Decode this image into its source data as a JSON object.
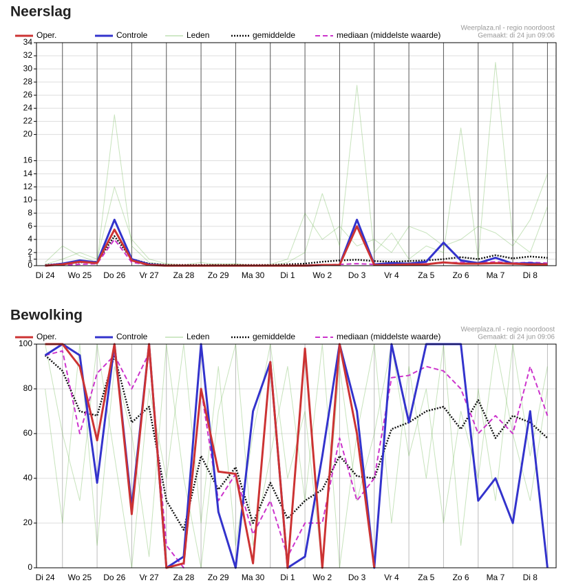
{
  "chart_data": [
    {
      "type": "line",
      "title": "Neerslag",
      "source": "Weerplaza.nl - regio noordoost",
      "created": "Gemaakt: di 24 jun 09:06",
      "categories": [
        "Di 24",
        null,
        "Wo 25",
        null,
        "Do 26",
        null,
        "Vr 27",
        null,
        "Za 28",
        null,
        "Zo 29",
        null,
        "Ma 30",
        null,
        "Di 1",
        null,
        "Wo 2",
        null,
        "Do 3",
        null,
        "Vr 4",
        null,
        "Za 5",
        null,
        "Zo 6",
        null,
        "Ma 7",
        null,
        "Di 8",
        null
      ],
      "ylim": [
        0,
        34
      ],
      "yticks": [
        0,
        1,
        2,
        4,
        6,
        8,
        10,
        12,
        14,
        16,
        20,
        22,
        24,
        26,
        28,
        30,
        32,
        34
      ],
      "grid": true,
      "series": [
        {
          "name": "Oper.",
          "color": "#cc3333",
          "style": "solid",
          "values": [
            0,
            0.2,
            0.6,
            0.4,
            5.5,
            0.8,
            0.1,
            0,
            0,
            0,
            0,
            0,
            0,
            0,
            0,
            0,
            0.1,
            0.1,
            6,
            0.1,
            0.1,
            0.2,
            0.2,
            0.5,
            0.3,
            0.3,
            0.4,
            0.3,
            0.2,
            0.2
          ]
        },
        {
          "name": "Controle",
          "color": "#3333cc",
          "style": "solid",
          "values": [
            0,
            0.3,
            0.8,
            0.5,
            7,
            1,
            0.2,
            0,
            0,
            0,
            0,
            0,
            0,
            0,
            0,
            0,
            0.1,
            0.1,
            7,
            0.2,
            0.4,
            0.3,
            0.6,
            3.5,
            0.8,
            0.4,
            1.2,
            0.3,
            0.4,
            0.2
          ]
        },
        {
          "name": "Leden",
          "color": "#5fb040",
          "style": "thin",
          "members": [
            [
              0.5,
              3,
              1.5,
              0.5,
              23,
              3,
              0.5,
              0.2,
              0,
              0,
              0.3,
              0.2,
              0.1,
              0,
              0.5,
              2,
              11,
              3,
              27.5,
              2,
              5,
              1,
              3,
              2,
              21,
              1,
              31,
              4,
              2,
              9
            ],
            [
              0.2,
              1,
              2,
              1,
              12,
              4,
              1,
              0.3,
              0.1,
              0.5,
              0.1,
              0.3,
              0,
              0.2,
              1,
              8,
              4,
              6,
              3,
              4,
              2,
              6,
              5,
              3,
              4,
              6,
              5,
              3,
              7,
              14
            ]
          ]
        },
        {
          "name": "gemiddelde",
          "color": "#111111",
          "style": "dotted",
          "values": [
            0.1,
            0.3,
            0.5,
            0.6,
            4.5,
            1,
            0.3,
            0.1,
            0.1,
            0.1,
            0.1,
            0.1,
            0.1,
            0.1,
            0.2,
            0.3,
            0.6,
            0.8,
            0.9,
            0.7,
            0.6,
            0.7,
            0.8,
            1,
            1.3,
            1,
            1.6,
            1.1,
            1.4,
            1.2
          ]
        },
        {
          "name": "mediaan (middelste waarde)",
          "color": "#cc33cc",
          "style": "dashed",
          "values": [
            0,
            0.1,
            0.2,
            0.3,
            4,
            0.5,
            0.1,
            0,
            0,
            0,
            0,
            0,
            0,
            0,
            0,
            0,
            0.1,
            0.2,
            0.3,
            0.2,
            0.2,
            0.2,
            0.3,
            0.4,
            0.5,
            0.4,
            0.6,
            0.4,
            0.5,
            0.4
          ]
        }
      ]
    },
    {
      "type": "line",
      "title": "Bewolking",
      "source": "Weerplaza.nl - regio noordoost",
      "created": "Gemaakt: di 24 jun 09:06",
      "categories": [
        "Di 24",
        null,
        "Wo 25",
        null,
        "Do 26",
        null,
        "Vr 27",
        null,
        "Za 28",
        null,
        "Zo 29",
        null,
        "Ma 30",
        null,
        "Di 1",
        null,
        "Wo 2",
        null,
        "Do 3",
        null,
        "Vr 4",
        null,
        "Za 5",
        null,
        "Zo 6",
        null,
        "Ma 7",
        null,
        "Di 8",
        null
      ],
      "ylim": [
        0,
        100
      ],
      "yticks": [
        0,
        20,
        40,
        60,
        80,
        100
      ],
      "grid": true,
      "series": [
        {
          "name": "Oper.",
          "color": "#cc3333",
          "style": "solid",
          "values": [
            100,
            100,
            90,
            57,
            100,
            24,
            100,
            0,
            2,
            80,
            43,
            42,
            2,
            92,
            0,
            98,
            0,
            100,
            60,
            0,
            null,
            null,
            null,
            null,
            null,
            null,
            null,
            null,
            null,
            null
          ]
        },
        {
          "name": "Controle",
          "color": "#3333cc",
          "style": "solid",
          "values": [
            95,
            100,
            95,
            38,
            100,
            27,
            100,
            0,
            5,
            100,
            25,
            0,
            70,
            92,
            0,
            5,
            50,
            100,
            70,
            0,
            100,
            65,
            100,
            100,
            100,
            30,
            40,
            20,
            70,
            0
          ]
        },
        {
          "name": "Leden",
          "color": "#5fb040",
          "style": "thin",
          "members": [
            [
              80,
              20,
              100,
              10,
              90,
              60,
              5,
              100,
              40,
              0,
              70,
              100,
              10,
              50,
              90,
              30,
              100,
              0,
              60,
              100,
              20,
              90,
              40,
              100,
              10,
              80,
              30,
              100,
              50,
              90
            ],
            [
              100,
              60,
              30,
              100,
              50,
              0,
              80,
              40,
              100,
              20,
              90,
              10,
              60,
              100,
              40,
              70,
              0,
              90,
              30,
              60,
              100,
              50,
              80,
              20,
              70,
              40,
              100,
              60,
              30,
              80
            ]
          ]
        },
        {
          "name": "gemiddelde",
          "color": "#111111",
          "style": "dotted",
          "values": [
            95,
            88,
            70,
            68,
            95,
            65,
            72,
            30,
            17,
            50,
            35,
            45,
            20,
            38,
            22,
            30,
            35,
            50,
            41,
            40,
            62,
            65,
            70,
            72,
            62,
            75,
            58,
            68,
            65,
            58
          ]
        },
        {
          "name": "mediaan (middelste waarde)",
          "color": "#cc33cc",
          "style": "dashed",
          "values": [
            95,
            97,
            60,
            87,
            95,
            80,
            96,
            10,
            0,
            80,
            30,
            42,
            15,
            30,
            5,
            20,
            20,
            58,
            30,
            40,
            85,
            86,
            90,
            88,
            80,
            60,
            68,
            60,
            90,
            68
          ]
        }
      ]
    }
  ]
}
